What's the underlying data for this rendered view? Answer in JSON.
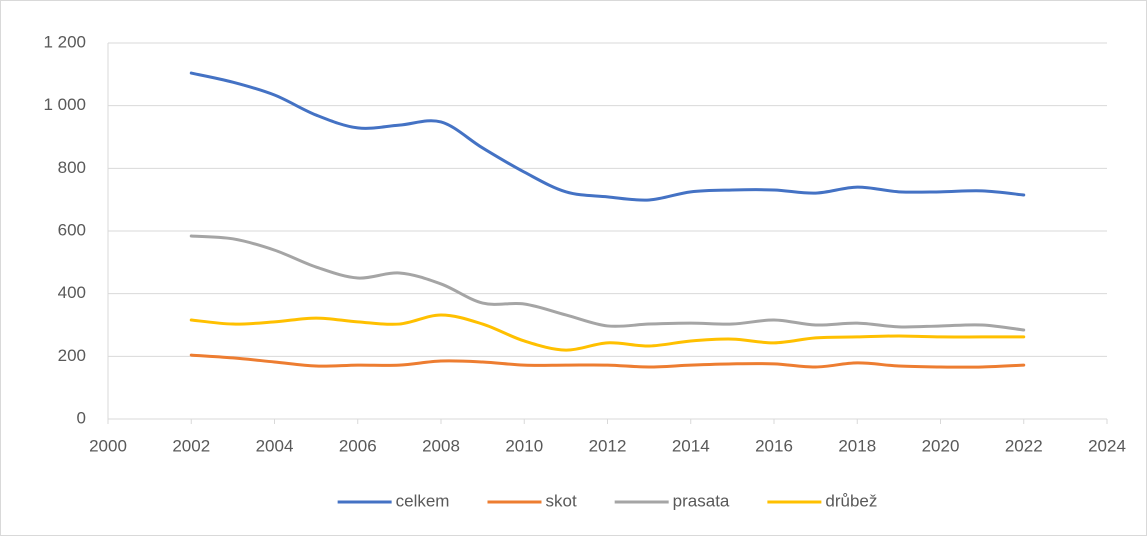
{
  "chart_data": {
    "type": "line",
    "x": [
      2002,
      2003,
      2004,
      2005,
      2006,
      2007,
      2008,
      2009,
      2010,
      2011,
      2012,
      2013,
      2014,
      2015,
      2016,
      2017,
      2018,
      2019,
      2020,
      2021,
      2022
    ],
    "series": [
      {
        "name": "celkem",
        "color": "#4472c4",
        "values": [
          1104,
          1075,
          1034,
          970,
          929,
          938,
          948,
          865,
          788,
          725,
          709,
          699,
          725,
          731,
          731,
          721,
          740,
          725,
          725,
          728,
          715
        ]
      },
      {
        "name": "skot",
        "color": "#ed7d31",
        "values": [
          204,
          195,
          182,
          169,
          172,
          172,
          185,
          182,
          172,
          172,
          172,
          166,
          172,
          176,
          176,
          166,
          179,
          169,
          166,
          166,
          172
        ]
      },
      {
        "name": "prasata",
        "color": "#a5a5a5",
        "values": [
          584,
          575,
          539,
          485,
          450,
          466,
          431,
          370,
          367,
          332,
          297,
          303,
          306,
          303,
          316,
          300,
          306,
          294,
          297,
          300,
          284
        ]
      },
      {
        "name": "drůbež",
        "color": "#ffc000",
        "values": [
          316,
          303,
          310,
          322,
          310,
          303,
          332,
          303,
          249,
          220,
          243,
          233,
          249,
          255,
          243,
          259,
          262,
          265,
          262,
          262,
          262
        ]
      }
    ],
    "xlim": [
      2000,
      2024
    ],
    "xticks": [
      2000,
      2002,
      2004,
      2006,
      2008,
      2010,
      2012,
      2014,
      2016,
      2018,
      2020,
      2022,
      2024
    ],
    "ylim": [
      0,
      1200
    ],
    "yticks": [
      0,
      200,
      400,
      600,
      800,
      {
        "value": 1000,
        "label": "1 000"
      },
      {
        "value": 1200,
        "label": "1 200"
      }
    ],
    "grid": true,
    "legend": "bottom"
  }
}
